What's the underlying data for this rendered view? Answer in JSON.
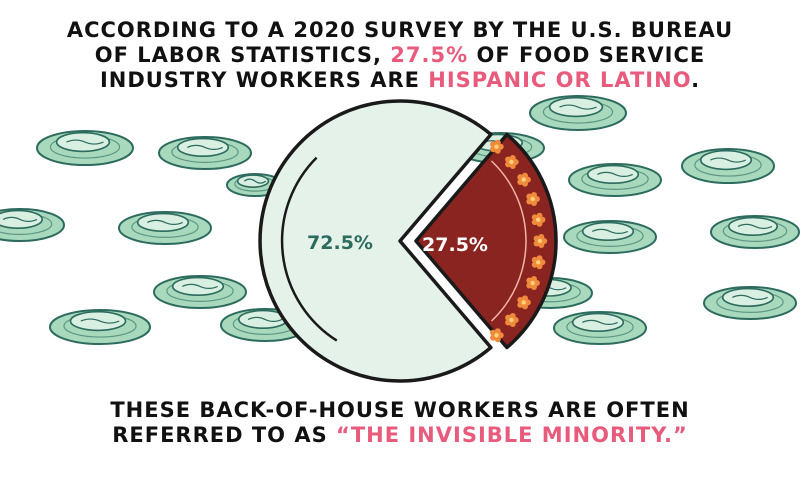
{
  "headline": {
    "line1": "ACCORDING TO A 2020 SURVEY BY THE U.S. BUREAU",
    "line2_a": "OF LABOR STATISTICS, ",
    "line2_b": "27.5%",
    "line2_c": " OF FOOD SERVICE",
    "line3_a": "INDUSTRY WORKERS ARE ",
    "line3_b": "HISPANIC OR LATINO",
    "line3_c": "."
  },
  "footer": {
    "line1": "THESE BACK-OF-HOUSE WORKERS ARE OFTEN",
    "line2_a": "REFERRED TO AS ",
    "line2_b": "“THE INVISIBLE MINORITY.”"
  },
  "colors": {
    "highlight": "#e85b7c",
    "plate": "#a8d9bd",
    "plate_dark": "#2c6b5e",
    "pie_main": "#e4f2ea",
    "pie_slice": "#8a2420",
    "flower": "#f08a3c",
    "ink": "#1a1a1a"
  },
  "chart_data": {
    "type": "pie",
    "slices": [
      {
        "value": 72.5,
        "label": "72.5%",
        "color": "#e4f2ea"
      },
      {
        "value": 27.5,
        "label": "27.5%",
        "color": "#8a2420",
        "exploded": true
      }
    ]
  }
}
